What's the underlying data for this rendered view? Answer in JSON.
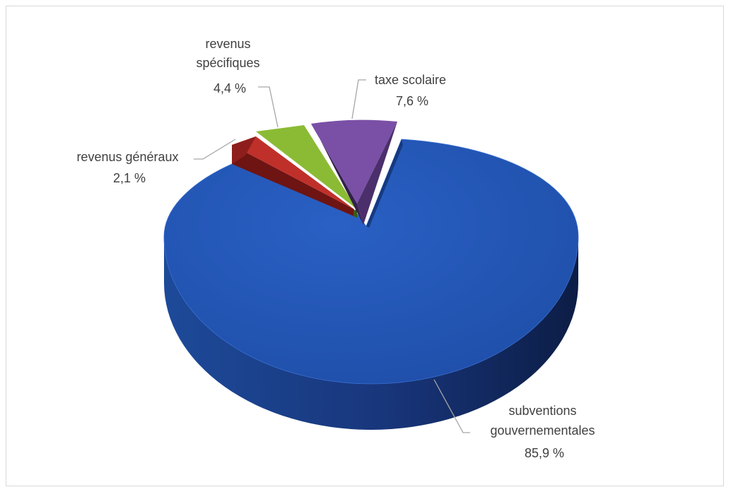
{
  "chart_data": {
    "type": "pie",
    "style": "3d-exploded",
    "title": "",
    "slices": [
      {
        "key": "subventions",
        "name": "subventions gouvernementales",
        "label_lines": [
          "subventions",
          "gouvernementales"
        ],
        "value": 85.9,
        "value_label": "85,9 %",
        "color": "#2456b6"
      },
      {
        "key": "generaux",
        "name": "revenus généraux",
        "label_lines": [
          "revenus généraux"
        ],
        "value": 2.1,
        "value_label": "2,1 %",
        "color": "#c0302b"
      },
      {
        "key": "specifiques",
        "name": "revenus spécifiques",
        "label_lines": [
          "revenus",
          "spécifiques"
        ],
        "value": 4.4,
        "value_label": "4,4 %",
        "color": "#8bbb35"
      },
      {
        "key": "taxe",
        "name": "taxe scolaire",
        "label_lines": [
          "taxe scolaire"
        ],
        "value": 7.6,
        "value_label": "7,6 %",
        "color": "#7a50a6"
      }
    ]
  }
}
